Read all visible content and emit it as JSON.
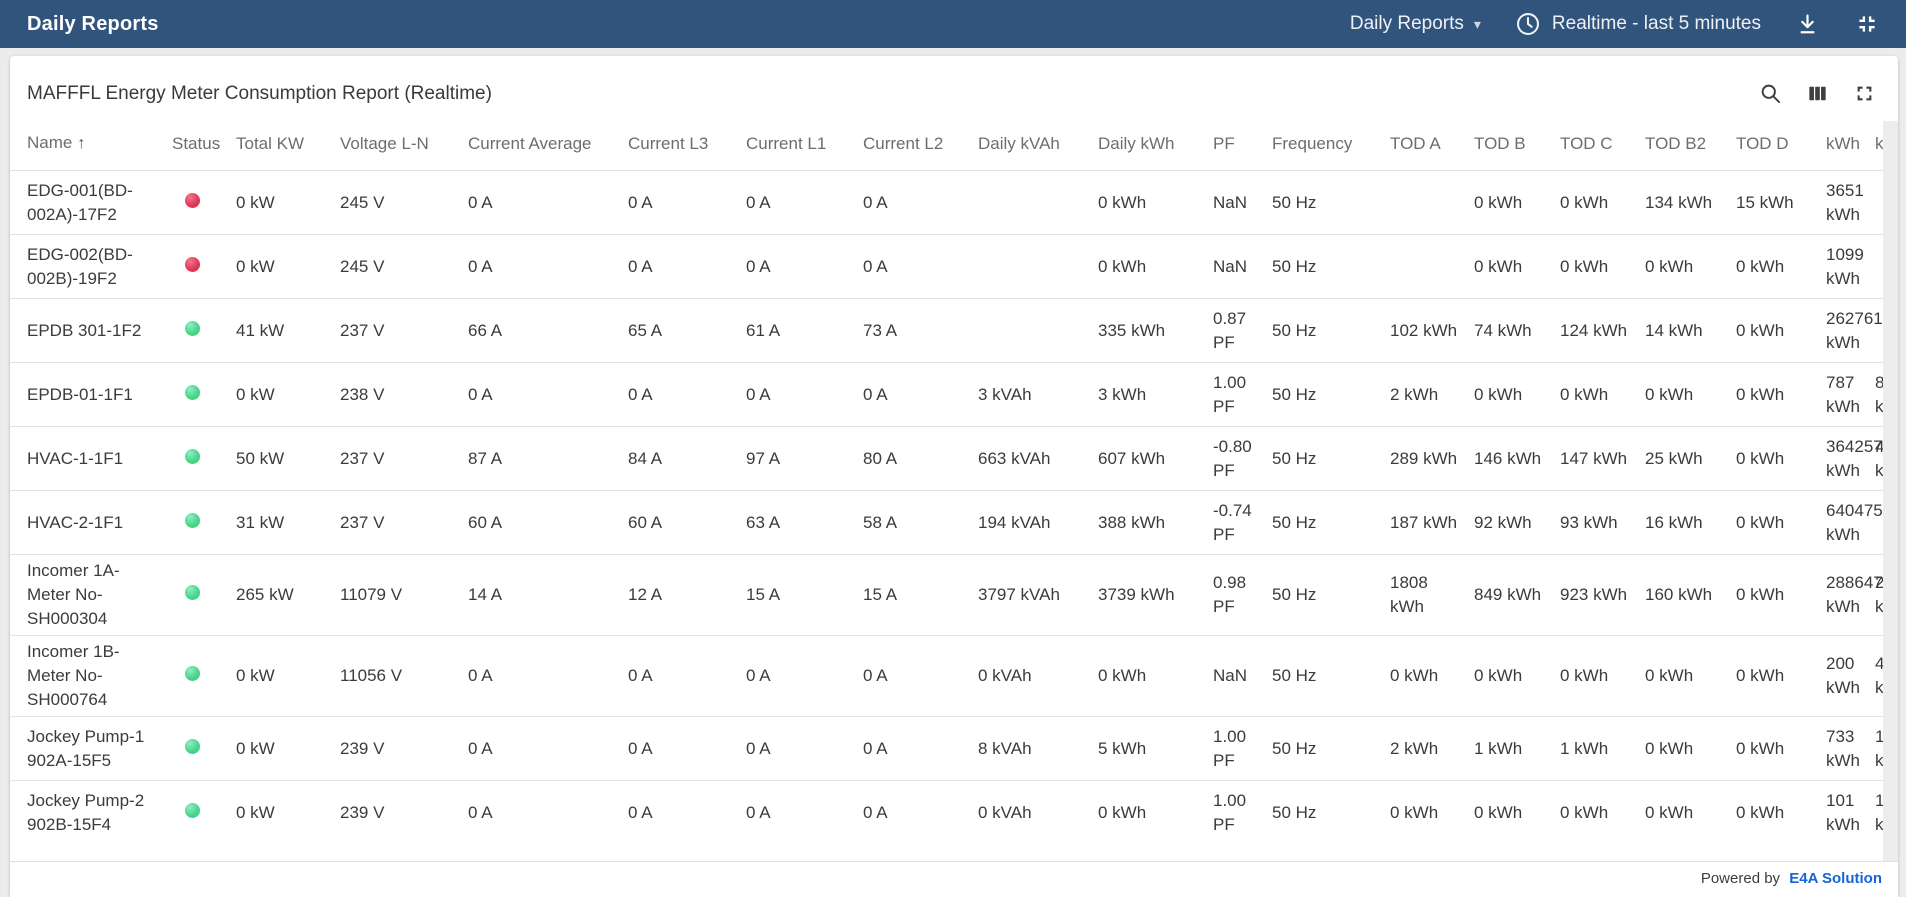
{
  "topbar": {
    "title": "Daily Reports",
    "report_selector_label": "Daily Reports",
    "time_range_label": "Realtime - last 5 minutes",
    "bg_color": "#31547c"
  },
  "icons": {
    "chevron_down": "▾",
    "sort_ascending": "↑"
  },
  "card": {
    "title": "MAFFFL Energy Meter Consumption Report (Realtime)"
  },
  "footer": {
    "powered_by": "Powered by",
    "brand": "E4A Solution",
    "brand_color": "#1565d8"
  },
  "status_colors": {
    "red": "#e0395a",
    "green": "#4cd48d"
  },
  "table": {
    "columns": [
      {
        "key": "name",
        "label": "Name",
        "sorted": true
      },
      {
        "key": "status",
        "label": "Status"
      },
      {
        "key": "total_kw",
        "label": "Total KW"
      },
      {
        "key": "voltage_ln",
        "label": "Voltage L-N"
      },
      {
        "key": "current_avg",
        "label": "Current Average"
      },
      {
        "key": "current_l3",
        "label": "Current L3"
      },
      {
        "key": "current_l1",
        "label": "Current L1"
      },
      {
        "key": "current_l2",
        "label": "Current L2"
      },
      {
        "key": "daily_kvah",
        "label": "Daily kVAh"
      },
      {
        "key": "daily_kwh",
        "label": "Daily kWh"
      },
      {
        "key": "pf",
        "label": "PF"
      },
      {
        "key": "frequency",
        "label": "Frequency"
      },
      {
        "key": "tod_a",
        "label": "TOD A"
      },
      {
        "key": "tod_b",
        "label": "TOD B"
      },
      {
        "key": "tod_c",
        "label": "TOD C"
      },
      {
        "key": "tod_b2",
        "label": "TOD B2"
      },
      {
        "key": "tod_d",
        "label": "TOD D"
      },
      {
        "key": "kwh",
        "label": "kWh"
      },
      {
        "key": "kvah_cut",
        "label": "k"
      }
    ],
    "rows": [
      {
        "name": "EDG-001(BD-\n002A)-17F2",
        "status": "red",
        "total_kw": "0 kW",
        "voltage_ln": "245 V",
        "current_avg": "0 A",
        "current_l3": "0 A",
        "current_l1": "0 A",
        "current_l2": "0 A",
        "daily_kvah": "",
        "daily_kwh": "0 kWh",
        "pf": "NaN",
        "frequency": "50 Hz",
        "tod_a": "",
        "tod_b": "0 kWh",
        "tod_c": "0 kWh",
        "tod_b2": "134 kWh",
        "tod_d": "15 kWh",
        "kwh": "3651 kWh",
        "kvah_cut": ""
      },
      {
        "name": "EDG-002(BD-\n002B)-19F2",
        "status": "red",
        "total_kw": "0 kW",
        "voltage_ln": "245 V",
        "current_avg": "0 A",
        "current_l3": "0 A",
        "current_l1": "0 A",
        "current_l2": "0 A",
        "daily_kvah": "",
        "daily_kwh": "0 kWh",
        "pf": "NaN",
        "frequency": "50 Hz",
        "tod_a": "",
        "tod_b": "0 kWh",
        "tod_c": "0 kWh",
        "tod_b2": "0 kWh",
        "tod_d": "0 kWh",
        "kwh": "1099 kWh",
        "kvah_cut": ""
      },
      {
        "name": "EPDB 301-1F2",
        "status": "green",
        "total_kw": "41 kW",
        "voltage_ln": "237 V",
        "current_avg": "66 A",
        "current_l3": "65 A",
        "current_l1": "61 A",
        "current_l2": "73 A",
        "daily_kvah": "",
        "daily_kwh": "335 kWh",
        "pf": "0.87 PF",
        "frequency": "50 Hz",
        "tod_a": "102 kWh",
        "tod_b": "74 kWh",
        "tod_c": "124 kWh",
        "tod_b2": "14 kWh",
        "tod_d": "0 kWh",
        "kwh": "262761 kWh",
        "kvah_cut": ""
      },
      {
        "name": "EPDB-01-1F1",
        "status": "green",
        "total_kw": "0 kW",
        "voltage_ln": "238 V",
        "current_avg": "0 A",
        "current_l3": "0 A",
        "current_l1": "0 A",
        "current_l2": "0 A",
        "daily_kvah": "3 kVAh",
        "daily_kwh": "3 kWh",
        "pf": "1.00 PF",
        "frequency": "50 Hz",
        "tod_a": "2 kWh",
        "tod_b": "0 kWh",
        "tod_c": "0 kWh",
        "tod_b2": "0 kWh",
        "tod_d": "0 kWh",
        "kwh": "787 kWh",
        "kvah_cut": "8\nk"
      },
      {
        "name": "HVAC-1-1F1",
        "status": "green",
        "total_kw": "50 kW",
        "voltage_ln": "237 V",
        "current_avg": "87 A",
        "current_l3": "84 A",
        "current_l1": "97 A",
        "current_l2": "80 A",
        "daily_kvah": "663 kVAh",
        "daily_kwh": "607 kWh",
        "pf": "-0.80 PF",
        "frequency": "50 Hz",
        "tod_a": "289 kWh",
        "tod_b": "146 kWh",
        "tod_c": "147 kWh",
        "tod_b2": "25 kWh",
        "tod_d": "0 kWh",
        "kwh": "364257 kWh",
        "kvah_cut": "4\nk"
      },
      {
        "name": "HVAC-2-1F1",
        "status": "green",
        "total_kw": "31 kW",
        "voltage_ln": "237 V",
        "current_avg": "60 A",
        "current_l3": "60 A",
        "current_l1": "63 A",
        "current_l2": "58 A",
        "daily_kvah": "194 kVAh",
        "daily_kwh": "388 kWh",
        "pf": "-0.74 PF",
        "frequency": "50 Hz",
        "tod_a": "187 kWh",
        "tod_b": "92 kWh",
        "tod_c": "93 kWh",
        "tod_b2": "16 kWh",
        "tod_d": "0 kWh",
        "kwh": "640475 kWh",
        "kvah_cut": ""
      },
      {
        "name": "Incomer 1A-\nMeter No-\nSH000304",
        "status": "green",
        "total_kw": "265 kW",
        "voltage_ln": "11079 V",
        "current_avg": "14 A",
        "current_l3": "12 A",
        "current_l1": "15 A",
        "current_l2": "15 A",
        "daily_kvah": "3797 kVAh",
        "daily_kwh": "3739 kWh",
        "pf": "0.98 PF",
        "frequency": "50 Hz",
        "tod_a": "1808 kWh",
        "tod_b": "849 kWh",
        "tod_c": "923 kWh",
        "tod_b2": "160 kWh",
        "tod_d": "0 kWh",
        "kwh": "288647 kWh",
        "kvah_cut": "2\nk"
      },
      {
        "name": "Incomer 1B-\nMeter No-\nSH000764",
        "status": "green",
        "total_kw": "0 kW",
        "voltage_ln": "11056 V",
        "current_avg": "0 A",
        "current_l3": "0 A",
        "current_l1": "0 A",
        "current_l2": "0 A",
        "daily_kvah": "0 kVAh",
        "daily_kwh": "0 kWh",
        "pf": "NaN",
        "frequency": "50 Hz",
        "tod_a": "0 kWh",
        "tod_b": "0 kWh",
        "tod_c": "0 kWh",
        "tod_b2": "0 kWh",
        "tod_d": "0 kWh",
        "kwh": "200 kWh",
        "kvah_cut": "4\nk"
      },
      {
        "name": "Jockey Pump-1\n902A-15F5",
        "status": "green",
        "total_kw": "0 kW",
        "voltage_ln": "239 V",
        "current_avg": "0 A",
        "current_l3": "0 A",
        "current_l1": "0 A",
        "current_l2": "0 A",
        "daily_kvah": "8 kVAh",
        "daily_kwh": "5 kWh",
        "pf": "1.00 PF",
        "frequency": "50 Hz",
        "tod_a": "2 kWh",
        "tod_b": "1 kWh",
        "tod_c": "1 kWh",
        "tod_b2": "0 kWh",
        "tod_d": "0 kWh",
        "kwh": "733 kWh",
        "kvah_cut": "1\nk"
      },
      {
        "name": "Jockey Pump-2\n902B-15F4",
        "status": "green",
        "total_kw": "0 kW",
        "voltage_ln": "239 V",
        "current_avg": "0 A",
        "current_l3": "0 A",
        "current_l1": "0 A",
        "current_l2": "0 A",
        "daily_kvah": "0 kVAh",
        "daily_kwh": "0 kWh",
        "pf": "1.00 PF",
        "frequency": "50 Hz",
        "tod_a": "0 kWh",
        "tod_b": "0 kWh",
        "tod_c": "0 kWh",
        "tod_b2": "0 kWh",
        "tod_d": "0 kWh",
        "kwh": "101 kWh",
        "kvah_cut": "1\nk"
      }
    ]
  }
}
